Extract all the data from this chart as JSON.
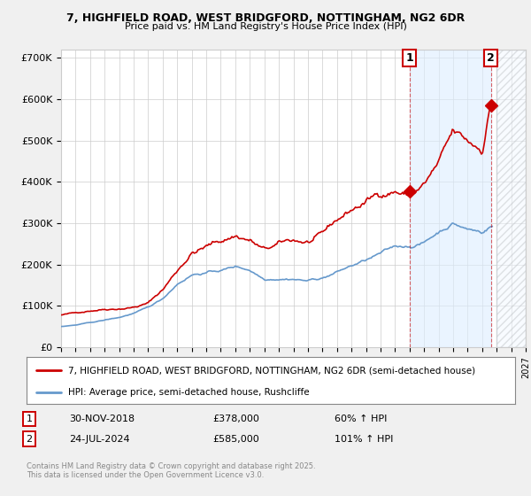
{
  "title_line1": "7, HIGHFIELD ROAD, WEST BRIDGFORD, NOTTINGHAM, NG2 6DR",
  "title_line2": "Price paid vs. HM Land Registry's House Price Index (HPI)",
  "ylim": [
    0,
    720000
  ],
  "xlim_start": 1995.0,
  "xlim_end": 2027.0,
  "yticks": [
    0,
    100000,
    200000,
    300000,
    400000,
    500000,
    600000,
    700000
  ],
  "ytick_labels": [
    "£0",
    "£100K",
    "£200K",
    "£300K",
    "£400K",
    "£500K",
    "£600K",
    "£700K"
  ],
  "bg_color": "#f0f0f0",
  "plot_bg_color": "#ffffff",
  "grid_color": "#cccccc",
  "red_color": "#cc0000",
  "blue_color": "#6699cc",
  "sale1_x": 2019.0,
  "sale1_y": 378000,
  "sale2_x": 2024.6,
  "sale2_y": 585000,
  "sale1_date": "30-NOV-2018",
  "sale1_price": "£378,000",
  "sale1_hpi": "60% ↑ HPI",
  "sale2_date": "24-JUL-2024",
  "sale2_price": "£585,000",
  "sale2_hpi": "101% ↑ HPI",
  "between_shade_start": 2019.0,
  "between_shade_end": 2024.6,
  "future_start": 2025.0,
  "legend_text1": "7, HIGHFIELD ROAD, WEST BRIDGFORD, NOTTINGHAM, NG2 6DR (semi-detached house)",
  "legend_text2": "HPI: Average price, semi-detached house, Rushcliffe",
  "footer": "Contains HM Land Registry data © Crown copyright and database right 2025.\nThis data is licensed under the Open Government Licence v3.0."
}
